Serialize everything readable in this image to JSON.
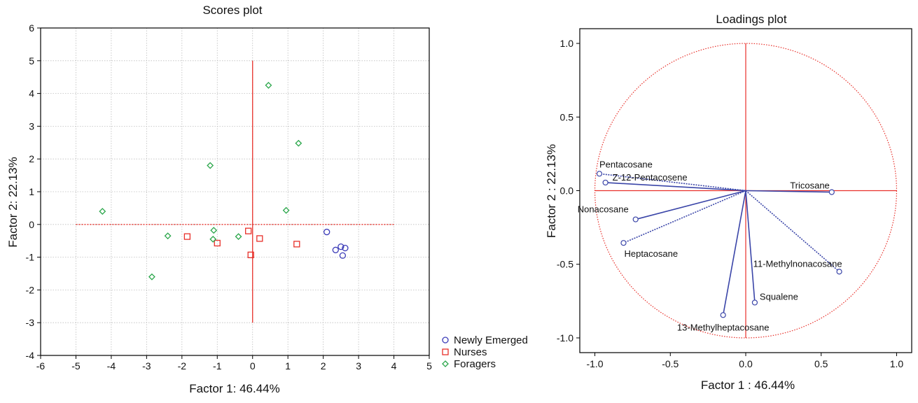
{
  "colors": {
    "newly_emerged": "#3b3bb8",
    "nurses": "#e8302a",
    "foragers": "#2aa64a",
    "reference": "#e8302a",
    "vector": "#3a45a8",
    "frame": "#000000",
    "grid": "#bdbdbd"
  },
  "chart_data": [
    {
      "type": "scatter",
      "title": "Scores plot",
      "xlabel": "Factor 1: 46.44%",
      "ylabel": "Factor 2: 22.13%",
      "xlim": [
        -6,
        5
      ],
      "ylim": [
        -4,
        6
      ],
      "xticks": [
        -6,
        -5,
        -4,
        -3,
        -2,
        -1,
        0,
        1,
        2,
        3,
        4,
        5
      ],
      "yticks": [
        -4,
        -3,
        -2,
        -1,
        0,
        1,
        2,
        3,
        4,
        5,
        6
      ],
      "grid": true,
      "legend_position": "outside bottom-right",
      "reference_lines": {
        "horizontal": {
          "y": 0,
          "x_range": [
            -5,
            4
          ]
        },
        "vertical": {
          "x": 0,
          "y_range": [
            -3,
            5
          ]
        }
      },
      "series": [
        {
          "name": "Newly Emerged",
          "marker": "circle",
          "points": [
            [
              2.1,
              -0.23
            ],
            [
              2.35,
              -0.78
            ],
            [
              2.5,
              -0.68
            ],
            [
              2.62,
              -0.72
            ],
            [
              2.55,
              -0.95
            ]
          ]
        },
        {
          "name": "Nurses",
          "marker": "square",
          "points": [
            [
              -1.85,
              -0.37
            ],
            [
              -1.0,
              -0.57
            ],
            [
              -0.12,
              -0.2
            ],
            [
              0.2,
              -0.43
            ],
            [
              -0.05,
              -0.93
            ],
            [
              1.25,
              -0.6
            ]
          ]
        },
        {
          "name": "Foragers",
          "marker": "diamond",
          "points": [
            [
              -4.25,
              0.4
            ],
            [
              -2.4,
              -0.35
            ],
            [
              -2.85,
              -1.6
            ],
            [
              -1.2,
              1.8
            ],
            [
              -1.1,
              -0.18
            ],
            [
              -1.12,
              -0.45
            ],
            [
              -0.4,
              -0.37
            ],
            [
              0.45,
              4.25
            ],
            [
              1.3,
              2.48
            ],
            [
              0.95,
              0.43
            ]
          ]
        }
      ]
    },
    {
      "type": "scatter",
      "subtype": "loadings",
      "title": "Loadings plot",
      "xlabel": "Factor 1 : 46.44%",
      "ylabel": "Factor 2 : 22.13%",
      "xlim": [
        -1.1,
        1.1
      ],
      "ylim": [
        -1.1,
        1.1
      ],
      "xticks": [
        -1.0,
        -0.5,
        0.0,
        0.5,
        1.0
      ],
      "xtick_labels": [
        "-1.0",
        "-0.5",
        "0.0",
        "0.5",
        "1.0"
      ],
      "yticks": [
        -1.0,
        -0.5,
        0.0,
        0.5,
        1.0
      ],
      "ytick_labels": [
        "-1.0",
        "-0.5",
        "0.0",
        "0.5",
        "1.0"
      ],
      "grid": false,
      "unit_circle": true,
      "loadings": [
        {
          "label": "Pentacosane",
          "x": -0.97,
          "y": 0.115,
          "line": "dotted"
        },
        {
          "label": "Z-12-Pentacosene",
          "x": -0.93,
          "y": 0.055,
          "line": "solid"
        },
        {
          "label": "Tricosane",
          "x": 0.57,
          "y": -0.01,
          "line": "solid"
        },
        {
          "label": "Nonacosane",
          "x": -0.73,
          "y": -0.195,
          "line": "solid"
        },
        {
          "label": "Heptacosane",
          "x": -0.81,
          "y": -0.355,
          "line": "dotted"
        },
        {
          "label": "11-Methylnonacosane",
          "x": 0.62,
          "y": -0.55,
          "line": "dotted"
        },
        {
          "label": "Squalene",
          "x": 0.06,
          "y": -0.76,
          "line": "solid"
        },
        {
          "label": "13-Methylheptacosane",
          "x": -0.15,
          "y": -0.845,
          "line": "solid"
        }
      ]
    }
  ]
}
